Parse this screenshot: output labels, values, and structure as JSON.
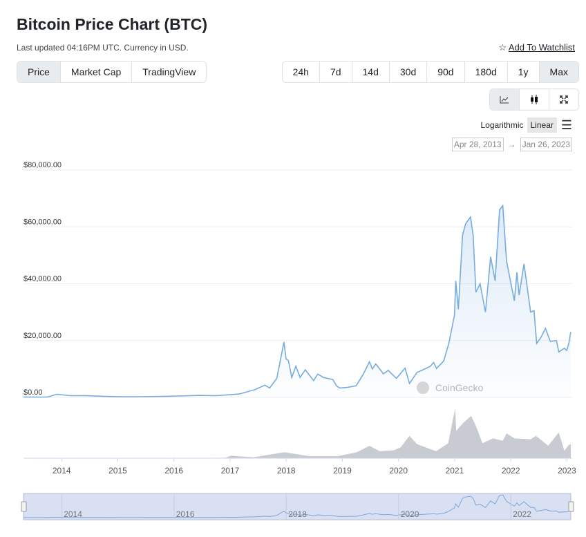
{
  "header": {
    "title": "Bitcoin Price Chart (BTC)",
    "subtitle": "Last updated 04:16PM UTC. Currency in USD.",
    "watchlist": "Add To Watchlist"
  },
  "data_tabs": [
    {
      "label": "Price",
      "active": true
    },
    {
      "label": "Market Cap"
    },
    {
      "label": "TradingView"
    }
  ],
  "ranges": [
    {
      "label": "24h"
    },
    {
      "label": "7d"
    },
    {
      "label": "14d"
    },
    {
      "label": "30d"
    },
    {
      "label": "90d"
    },
    {
      "label": "180d"
    },
    {
      "label": "1y"
    },
    {
      "label": "Max",
      "active": true
    }
  ],
  "chart_types": [
    "line-chart-icon",
    "candlestick-icon",
    "fullscreen-icon"
  ],
  "scale": {
    "log": "Logarithmic",
    "linear": "Linear",
    "active": "Linear"
  },
  "date_range": {
    "from": "Apr 28, 2013",
    "arrow": "→",
    "to": "Jan 26, 2023"
  },
  "watermark": "CoinGecko",
  "colors": {
    "line": "#76acde",
    "volume": "#c9cbd2",
    "navigator": "#d9e0f2"
  },
  "chart_data": {
    "type": "line",
    "title": "",
    "xlabel": "",
    "ylabel": "",
    "ylim": [
      0,
      80000
    ],
    "yticks": [
      "$0.00",
      "$20,000.00",
      "$40,000.00",
      "$60,000.00",
      "$80,000.00"
    ],
    "ytick_values": [
      0,
      20000,
      40000,
      60000,
      80000
    ],
    "xticks": [
      "2014",
      "2015",
      "2016",
      "2017",
      "2018",
      "2019",
      "2020",
      "2021",
      "2022",
      "2023"
    ],
    "navigator_ticks": [
      "2014",
      "2016",
      "2018",
      "2020",
      "2022"
    ],
    "xlim": [
      "2013-04-28",
      "2023-01-26"
    ],
    "grid": true,
    "series": [
      {
        "values": [
          [
            "2013-04-28",
            135
          ],
          [
            "2013-10-01",
            125
          ],
          [
            "2013-11-30",
            1100
          ],
          [
            "2014-01-15",
            850
          ],
          [
            "2014-03-01",
            600
          ],
          [
            "2014-06-01",
            640
          ],
          [
            "2014-10-01",
            380
          ],
          [
            "2015-01-15",
            220
          ],
          [
            "2015-06-01",
            240
          ],
          [
            "2015-11-05",
            400
          ],
          [
            "2015-12-31",
            430
          ],
          [
            "2016-06-15",
            700
          ],
          [
            "2016-10-01",
            610
          ],
          [
            "2016-12-31",
            960
          ],
          [
            "2017-03-01",
            1200
          ],
          [
            "2017-06-10",
            2700
          ],
          [
            "2017-08-15",
            4300
          ],
          [
            "2017-09-15",
            3300
          ],
          [
            "2017-11-01",
            6700
          ],
          [
            "2017-12-17",
            19500
          ],
          [
            "2017-12-31",
            13500
          ],
          [
            "2018-01-15",
            13000
          ],
          [
            "2018-02-06",
            7000
          ],
          [
            "2018-03-05",
            11000
          ],
          [
            "2018-04-01",
            7000
          ],
          [
            "2018-05-05",
            9700
          ],
          [
            "2018-06-28",
            5900
          ],
          [
            "2018-07-25",
            8200
          ],
          [
            "2018-09-01",
            7000
          ],
          [
            "2018-10-31",
            6300
          ],
          [
            "2018-11-25",
            4000
          ],
          [
            "2018-12-15",
            3300
          ],
          [
            "2019-02-01",
            3500
          ],
          [
            "2019-04-01",
            4100
          ],
          [
            "2019-05-15",
            8000
          ],
          [
            "2019-06-26",
            12500
          ],
          [
            "2019-07-15",
            10000
          ],
          [
            "2019-08-06",
            11800
          ],
          [
            "2019-09-25",
            8300
          ],
          [
            "2019-10-26",
            9500
          ],
          [
            "2019-12-18",
            6700
          ],
          [
            "2020-02-13",
            10300
          ],
          [
            "2020-03-12",
            4900
          ],
          [
            "2020-05-01",
            8800
          ],
          [
            "2020-06-01",
            9500
          ],
          [
            "2020-07-27",
            11000
          ],
          [
            "2020-08-17",
            12300
          ],
          [
            "2020-09-05",
            10200
          ],
          [
            "2020-10-21",
            12800
          ],
          [
            "2020-11-24",
            19000
          ],
          [
            "2020-12-31",
            29000
          ],
          [
            "2021-01-08",
            41000
          ],
          [
            "2021-01-25",
            31000
          ],
          [
            "2021-02-21",
            57000
          ],
          [
            "2021-03-13",
            61000
          ],
          [
            "2021-04-14",
            63500
          ],
          [
            "2021-05-01",
            57000
          ],
          [
            "2021-05-19",
            37000
          ],
          [
            "2021-06-15",
            40000
          ],
          [
            "2021-07-20",
            30000
          ],
          [
            "2021-08-23",
            49500
          ],
          [
            "2021-09-21",
            41000
          ],
          [
            "2021-10-20",
            66000
          ],
          [
            "2021-11-10",
            67500
          ],
          [
            "2021-12-04",
            48000
          ],
          [
            "2022-01-24",
            34000
          ],
          [
            "2022-02-10",
            44000
          ],
          [
            "2022-02-24",
            36000
          ],
          [
            "2022-03-28",
            47000
          ],
          [
            "2022-05-10",
            30000
          ],
          [
            "2022-06-01",
            30500
          ],
          [
            "2022-06-18",
            19000
          ],
          [
            "2022-07-15",
            21000
          ],
          [
            "2022-08-14",
            24300
          ],
          [
            "2022-09-15",
            19700
          ],
          [
            "2022-10-25",
            20000
          ],
          [
            "2022-11-09",
            16000
          ],
          [
            "2022-12-15",
            17300
          ],
          [
            "2022-12-31",
            16500
          ],
          [
            "2023-01-13",
            19000
          ],
          [
            "2023-01-26",
            23000
          ]
        ]
      }
    ],
    "volume": [
      [
        "2013-04-28",
        0.1
      ],
      [
        "2015-12-01",
        0.2
      ],
      [
        "2016-06-01",
        0.4
      ],
      [
        "2016-12-01",
        1
      ],
      [
        "2017-01-05",
        5
      ],
      [
        "2017-06-01",
        2
      ],
      [
        "2017-12-20",
        12
      ],
      [
        "2018-06-01",
        4
      ],
      [
        "2018-12-01",
        4
      ],
      [
        "2019-04-05",
        12
      ],
      [
        "2019-06-26",
        25
      ],
      [
        "2019-09-01",
        14
      ],
      [
        "2019-12-01",
        16
      ],
      [
        "2020-01-15",
        22
      ],
      [
        "2020-03-12",
        45
      ],
      [
        "2020-05-01",
        28
      ],
      [
        "2020-09-01",
        14
      ],
      [
        "2020-11-20",
        30
      ],
      [
        "2021-01-04",
        100
      ],
      [
        "2021-01-11",
        55
      ],
      [
        "2021-02-22",
        70
      ],
      [
        "2021-04-18",
        85
      ],
      [
        "2021-05-19",
        65
      ],
      [
        "2021-07-01",
        30
      ],
      [
        "2021-09-07",
        40
      ],
      [
        "2021-11-10",
        35
      ],
      [
        "2021-12-04",
        50
      ],
      [
        "2022-01-24",
        40
      ],
      [
        "2022-05-10",
        38
      ],
      [
        "2022-06-13",
        45
      ],
      [
        "2022-09-01",
        25
      ],
      [
        "2022-11-09",
        52
      ],
      [
        "2022-12-15",
        15
      ],
      [
        "2023-01-14",
        27
      ],
      [
        "2023-01-26",
        28
      ]
    ]
  }
}
